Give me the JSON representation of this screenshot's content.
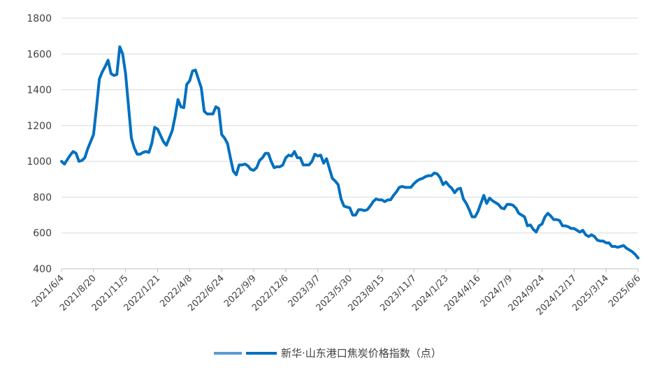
{
  "chart_data": {
    "type": "line",
    "title": "",
    "xlabel": "",
    "ylabel": "",
    "ylim": [
      400,
      1800
    ],
    "y_ticks": [
      400,
      600,
      800,
      1000,
      1200,
      1400,
      1600,
      1800
    ],
    "x_tick_labels": [
      "2021/6/4",
      "2021/8/20",
      "2021/11/5",
      "2022/1/21",
      "2022/4/8",
      "2022/6/24",
      "2022/9/9",
      "2022/12/6",
      "2023/3/7",
      "2023/5/30",
      "2023/8/15",
      "2023/11/7",
      "2024/1/23",
      "2024/4/16",
      "2024/7/9",
      "2024/9/24",
      "2024/12/17",
      "2025/3/14",
      "2025/6/6"
    ],
    "grid": "horizontal",
    "legend_position": "bottom",
    "series": [
      {
        "name": "新华·山东港口焦炭价格指数（点）",
        "color": "#0070C0",
        "values": [
          1000,
          985,
          1010,
          1035,
          1055,
          1045,
          1000,
          1005,
          1020,
          1070,
          1110,
          1150,
          1300,
          1460,
          1500,
          1530,
          1565,
          1490,
          1480,
          1485,
          1640,
          1600,
          1490,
          1310,
          1130,
          1075,
          1040,
          1040,
          1050,
          1055,
          1050,
          1100,
          1190,
          1180,
          1145,
          1110,
          1090,
          1130,
          1170,
          1250,
          1345,
          1305,
          1300,
          1430,
          1450,
          1505,
          1510,
          1460,
          1410,
          1280,
          1265,
          1265,
          1265,
          1305,
          1295,
          1150,
          1130,
          1100,
          1020,
          945,
          925,
          980,
          980,
          985,
          975,
          955,
          950,
          965,
          1005,
          1020,
          1045,
          1045,
          1000,
          965,
          970,
          970,
          980,
          1020,
          1035,
          1030,
          1055,
          1020,
          1020,
          980,
          980,
          980,
          1000,
          1040,
          1030,
          1035,
          990,
          1015,
          960,
          905,
          890,
          870,
          790,
          750,
          745,
          740,
          700,
          700,
          730,
          730,
          725,
          730,
          750,
          775,
          790,
          785,
          785,
          775,
          785,
          785,
          810,
          830,
          855,
          860,
          855,
          855,
          855,
          875,
          890,
          900,
          905,
          915,
          920,
          920,
          935,
          930,
          910,
          870,
          885,
          865,
          850,
          825,
          845,
          850,
          790,
          765,
          730,
          690,
          690,
          720,
          765,
          810,
          765,
          795,
          780,
          770,
          760,
          740,
          735,
          760,
          760,
          755,
          740,
          710,
          700,
          690,
          640,
          645,
          620,
          605,
          640,
          650,
          690,
          710,
          695,
          675,
          675,
          670,
          640,
          640,
          635,
          625,
          625,
          615,
          605,
          615,
          590,
          580,
          590,
          580,
          560,
          555,
          555,
          545,
          545,
          525,
          525,
          520,
          525,
          530,
          515,
          505,
          495,
          480,
          460
        ]
      }
    ]
  }
}
